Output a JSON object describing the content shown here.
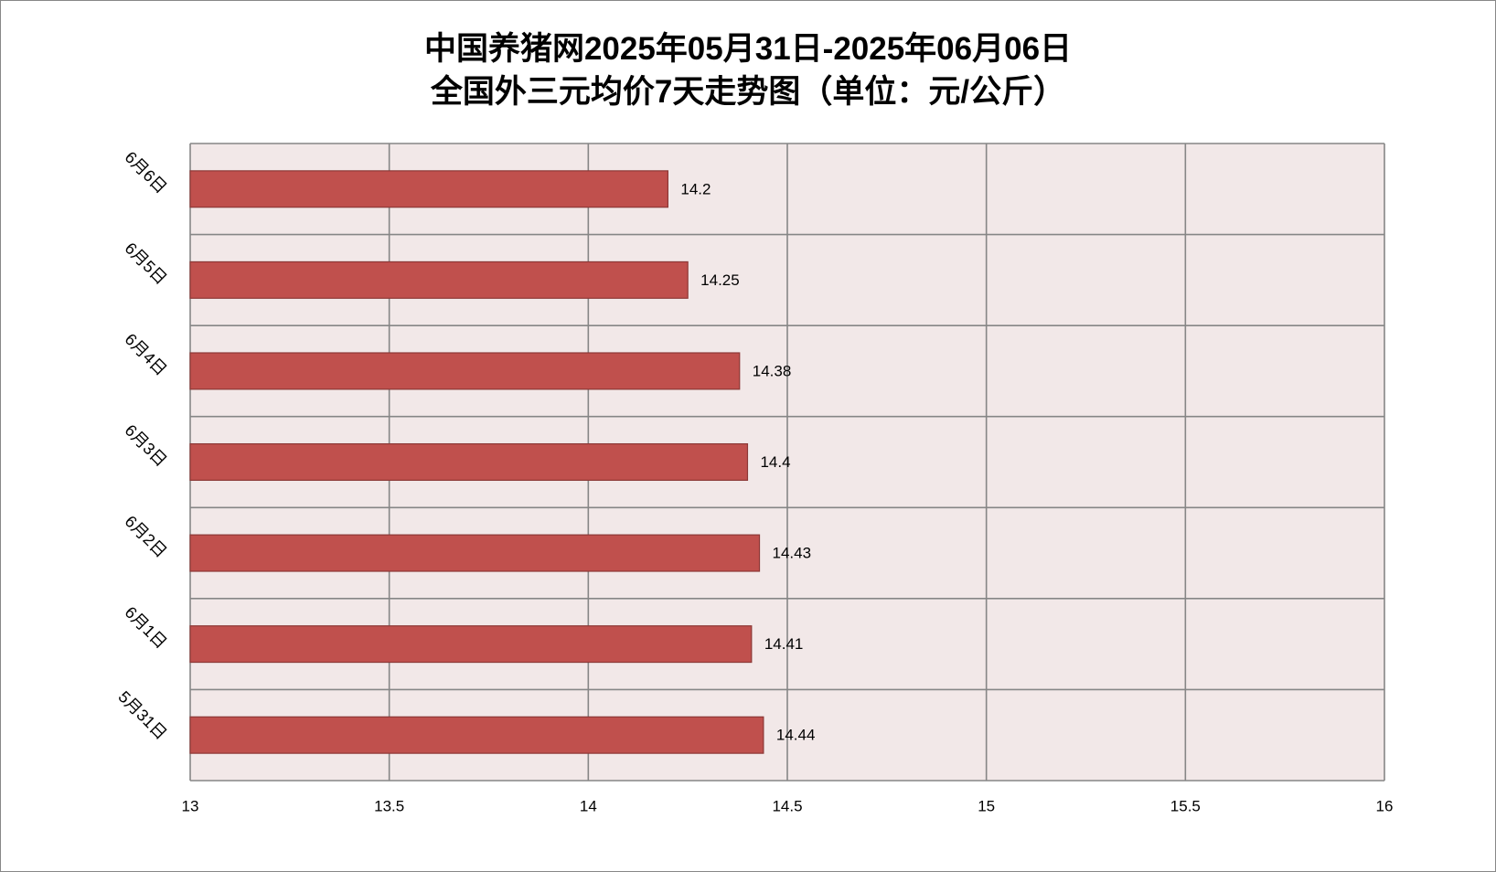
{
  "chart_data": {
    "type": "bar",
    "orientation": "horizontal",
    "title_lines": [
      "中国养猪网2025年05月31日-2025年06月06日",
      "全国外三元均价7天走势图（单位：元/公斤）"
    ],
    "categories": [
      "5月31日",
      "6月1日",
      "6月2日",
      "6月3日",
      "6月4日",
      "6月5日",
      "6月6日"
    ],
    "values": [
      14.44,
      14.41,
      14.43,
      14.4,
      14.38,
      14.25,
      14.2
    ],
    "xlim": [
      13,
      16
    ],
    "xticks": [
      13,
      13.5,
      14,
      14.5,
      15,
      15.5,
      16
    ],
    "grid": true,
    "legend": "none",
    "data_labels": true,
    "colors": {
      "bar": "#C0504D",
      "bar_edge": "#8C3836",
      "plot_bg": "#F2E8E8",
      "grid": "#868686",
      "frame": "#878787"
    }
  }
}
